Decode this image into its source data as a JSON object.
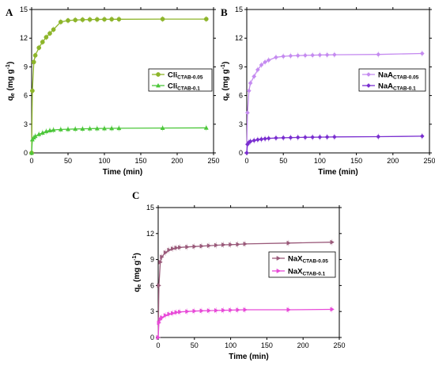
{
  "chart_data": [
    {
      "panel_label": "A",
      "type": "line",
      "xlabel": "Time (min)",
      "ylabel": "q",
      "ylabel_sub": "e",
      "ylabel_unit": " (mg g",
      "ylabel_sup": "-1",
      "ylabel_close": ")",
      "xlim": [
        0,
        250
      ],
      "ylim": [
        0,
        15
      ],
      "xticks": [
        0,
        50,
        100,
        150,
        200,
        250
      ],
      "yticks": [
        0,
        3,
        6,
        9,
        12,
        15
      ],
      "legend_position": "middle-right",
      "series": [
        {
          "name": "Cli",
          "name_sub": "CTAB-0.05",
          "marker": "circle",
          "color": "#8db52a",
          "x": [
            0,
            1,
            3,
            5,
            10,
            15,
            20,
            25,
            30,
            40,
            50,
            60,
            70,
            80,
            90,
            100,
            110,
            120,
            180,
            240
          ],
          "y": [
            0,
            6.5,
            9.5,
            10.2,
            11.0,
            11.6,
            12.1,
            12.5,
            12.9,
            13.7,
            13.85,
            13.9,
            13.93,
            13.95,
            13.96,
            13.97,
            13.98,
            13.98,
            14.0,
            14.0
          ]
        },
        {
          "name": "Cli",
          "name_sub": "CTAB-0.1",
          "marker": "triangle",
          "color": "#4cc73a",
          "x": [
            0,
            1,
            3,
            5,
            10,
            15,
            20,
            25,
            30,
            40,
            50,
            60,
            70,
            80,
            90,
            100,
            110,
            120,
            180,
            240
          ],
          "y": [
            0,
            1.4,
            1.6,
            1.75,
            1.95,
            2.1,
            2.25,
            2.35,
            2.4,
            2.45,
            2.48,
            2.5,
            2.52,
            2.54,
            2.55,
            2.56,
            2.57,
            2.58,
            2.6,
            2.62
          ]
        }
      ]
    },
    {
      "panel_label": "B",
      "type": "line",
      "xlabel": "Time (min)",
      "ylabel": "q",
      "ylabel_sub": "e",
      "ylabel_unit": " (mg g",
      "ylabel_sup": "-1",
      "ylabel_close": ")",
      "xlim": [
        0,
        250
      ],
      "ylim": [
        0,
        15
      ],
      "xticks": [
        0,
        50,
        100,
        150,
        200,
        250
      ],
      "yticks": [
        0,
        3,
        6,
        9,
        12,
        15
      ],
      "legend_position": "middle-right",
      "series": [
        {
          "name": "NaA",
          "name_sub": "CTAB-0.05",
          "marker": "diamond",
          "color": "#c58bf0",
          "x": [
            0,
            1,
            3,
            5,
            10,
            15,
            20,
            25,
            30,
            40,
            50,
            60,
            70,
            80,
            90,
            100,
            110,
            120,
            180,
            240
          ],
          "y": [
            0,
            4.2,
            6.5,
            7.3,
            8.0,
            8.7,
            9.2,
            9.5,
            9.7,
            10.0,
            10.1,
            10.15,
            10.18,
            10.2,
            10.22,
            10.24,
            10.25,
            10.27,
            10.3,
            10.4
          ]
        },
        {
          "name": "NaA",
          "name_sub": "CTAB-0.1",
          "marker": "diamond",
          "color": "#7a2fd0",
          "x": [
            0,
            1,
            3,
            5,
            10,
            15,
            20,
            25,
            30,
            40,
            50,
            60,
            70,
            80,
            90,
            100,
            110,
            120,
            180,
            240
          ],
          "y": [
            0,
            0.9,
            1.1,
            1.2,
            1.3,
            1.38,
            1.43,
            1.48,
            1.52,
            1.56,
            1.58,
            1.6,
            1.62,
            1.63,
            1.64,
            1.65,
            1.66,
            1.67,
            1.7,
            1.75
          ]
        }
      ]
    },
    {
      "panel_label": "C",
      "type": "line",
      "xlabel": "Time (min)",
      "ylabel": "q",
      "ylabel_sub": "e",
      "ylabel_unit": " (mg g",
      "ylabel_sup": "-1",
      "ylabel_close": ")",
      "xlim": [
        0,
        250
      ],
      "ylim": [
        0,
        15
      ],
      "xticks": [
        0,
        50,
        100,
        150,
        200,
        250
      ],
      "yticks": [
        0,
        3,
        6,
        9,
        12,
        15
      ],
      "legend_position": "middle-right",
      "series": [
        {
          "name": "NaX",
          "name_sub": "CTAB-0.05",
          "marker": "right-triangle",
          "color": "#9a5a7a",
          "x": [
            0,
            1,
            3,
            5,
            10,
            15,
            20,
            25,
            30,
            40,
            50,
            60,
            70,
            80,
            90,
            100,
            110,
            120,
            180,
            240
          ],
          "y": [
            0,
            6.0,
            8.7,
            9.3,
            9.8,
            10.1,
            10.25,
            10.35,
            10.4,
            10.45,
            10.5,
            10.55,
            10.6,
            10.65,
            10.7,
            10.72,
            10.75,
            10.8,
            10.9,
            11.0
          ]
        },
        {
          "name": "NaX",
          "name_sub": "CTAB-0.1",
          "marker": "right-triangle",
          "color": "#e84ad8",
          "x": [
            0,
            1,
            3,
            5,
            10,
            15,
            20,
            25,
            30,
            40,
            50,
            60,
            70,
            80,
            90,
            100,
            110,
            120,
            180,
            240
          ],
          "y": [
            0,
            1.7,
            2.1,
            2.3,
            2.55,
            2.7,
            2.8,
            2.9,
            2.95,
            3.0,
            3.05,
            3.08,
            3.1,
            3.12,
            3.14,
            3.16,
            3.18,
            3.2,
            3.2,
            3.25
          ]
        }
      ]
    }
  ]
}
